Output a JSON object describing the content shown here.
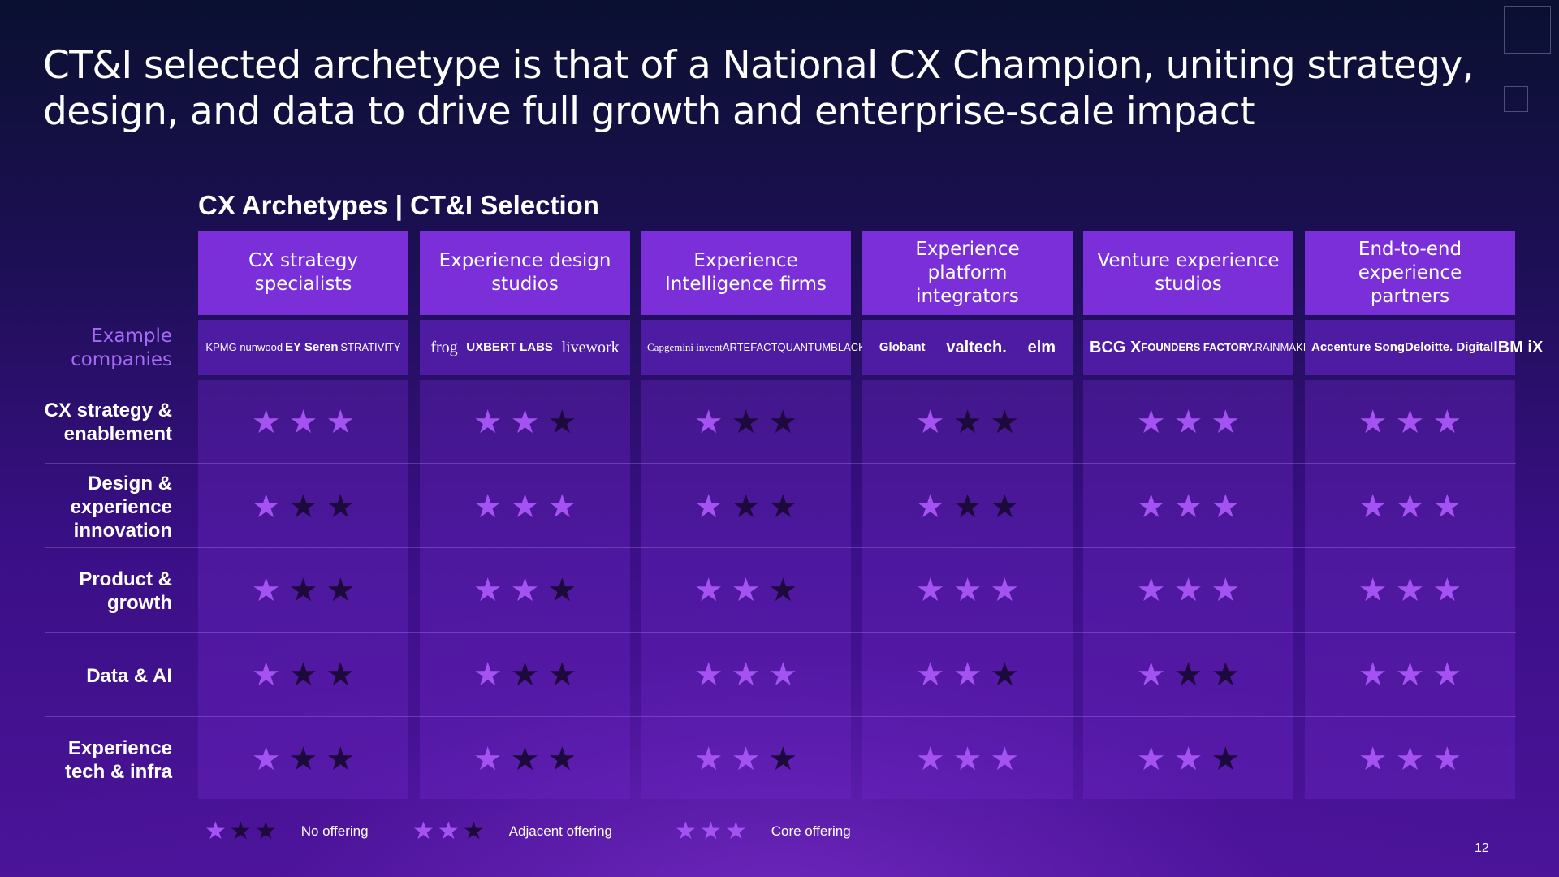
{
  "title": "CT&I selected archetype is that of a National CX Champion, uniting strategy, design, and data to drive full growth and enterprise-scale impact",
  "section_title": "CX Archetypes | CT&I Selection",
  "example_label": "Example companies",
  "columns": [
    {
      "header": "CX strategy specialists",
      "companies": [
        "KPMG nunwood",
        "EY Seren",
        "STRATIVITY"
      ]
    },
    {
      "header": "Experience design studios",
      "companies": [
        "frog",
        "UXBERT LABS",
        "livework"
      ]
    },
    {
      "header": "Experience Intelligence firms",
      "companies": [
        "Capgemini invent",
        "ARTEFACT",
        "QUANTUMBLACK"
      ]
    },
    {
      "header": "Experience platform integrators",
      "companies": [
        "Globant",
        "valtech.",
        "elm"
      ]
    },
    {
      "header": "Venture experience studios",
      "companies": [
        "BCG X",
        "FOUNDERS FACTORY.",
        "RAINMAKING"
      ]
    },
    {
      "header": "End-to-end experience partners",
      "companies": [
        "Accenture Song",
        "Deloitte. Digital",
        "IBM iX"
      ]
    }
  ],
  "rows": [
    {
      "label": "CX strategy & enablement",
      "ratings": [
        3,
        2,
        1,
        1,
        3,
        3
      ]
    },
    {
      "label": "Design & experience innovation",
      "ratings": [
        1,
        3,
        1,
        1,
        3,
        3
      ]
    },
    {
      "label": "Product & growth",
      "ratings": [
        1,
        2,
        2,
        3,
        3,
        3
      ]
    },
    {
      "label": "Data & AI",
      "ratings": [
        1,
        1,
        3,
        2,
        1,
        3
      ]
    },
    {
      "label": "Experience tech & infra",
      "ratings": [
        1,
        1,
        2,
        3,
        2,
        3
      ]
    }
  ],
  "legend": [
    {
      "level": 1,
      "label": "No offering"
    },
    {
      "level": 2,
      "label": "Adjacent offering"
    },
    {
      "level": 3,
      "label": "Core offering"
    }
  ],
  "page_number": "12",
  "icons": {
    "star": "star-icon"
  },
  "colors": {
    "accent": "#7a2fd9",
    "star_on": "#a552f2",
    "star_off": "#1c0a3c",
    "label": "#a66bf5"
  }
}
